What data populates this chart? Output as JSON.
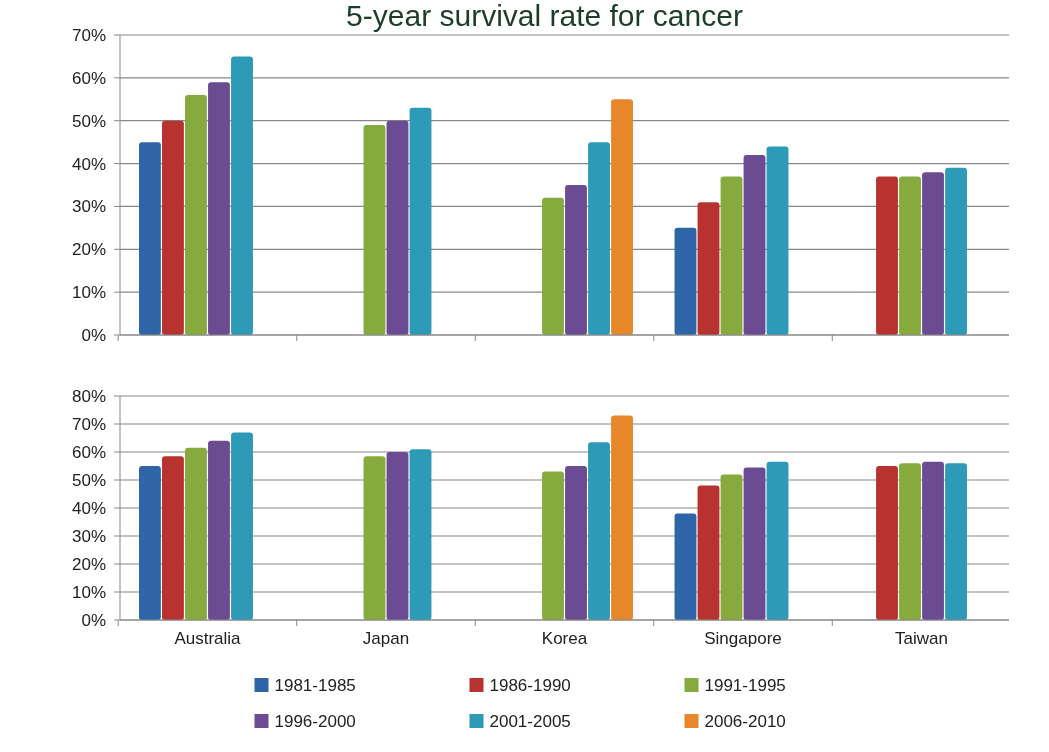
{
  "chart_data": [
    {
      "type": "bar",
      "title": "5-year survival  rate for cancer",
      "categories": [
        null,
        null,
        null,
        null,
        null
      ],
      "tick_labels": "y",
      "grid": "y",
      "legend": false,
      "ylim": [
        0,
        70
      ],
      "yticks": [
        {
          "value": 0,
          "label": "0%"
        },
        {
          "value": 10,
          "label": "10%"
        },
        {
          "value": 20,
          "label": "20%"
        },
        {
          "value": 30,
          "label": "30%"
        },
        {
          "value": 40,
          "label": "40%"
        },
        {
          "value": 50,
          "label": "50%"
        },
        {
          "value": 60,
          "label": "60%"
        },
        {
          "value": 70,
          "label": "70%"
        }
      ],
      "series": [
        {
          "color": "#2e64a8",
          "values": [
            45,
            null,
            null,
            25,
            null
          ]
        },
        {
          "color": "#b8332f",
          "values": [
            50,
            null,
            null,
            31,
            37
          ]
        },
        {
          "color": "#86aa3e",
          "values": [
            56,
            49,
            32,
            37,
            37
          ]
        },
        {
          "color": "#6b4c92",
          "values": [
            59,
            50,
            35,
            42,
            38
          ]
        },
        {
          "color": "#2d9ab8",
          "values": [
            65,
            53,
            45,
            44,
            39
          ]
        },
        {
          "color": "#e8872a",
          "values": [
            null,
            null,
            55,
            null,
            null
          ]
        }
      ]
    },
    {
      "type": "bar",
      "categories": [
        "Australia",
        "Japan",
        "Korea",
        "Singapore",
        "Taiwan"
      ],
      "grid": "y",
      "legend": "bottom",
      "ylim": [
        0,
        80
      ],
      "yticks": [
        {
          "value": 0,
          "label": "0%"
        },
        {
          "value": 10,
          "label": "10%"
        },
        {
          "value": 20,
          "label": "20%"
        },
        {
          "value": 30,
          "label": "30%"
        },
        {
          "value": 40,
          "label": "40%"
        },
        {
          "value": 50,
          "label": "50%"
        },
        {
          "value": 60,
          "label": "60%"
        },
        {
          "value": 70,
          "label": "70%"
        },
        {
          "value": 80,
          "label": "80%"
        }
      ],
      "series": [
        {
          "name": "1981-1985",
          "color": "#2e64a8",
          "values": [
            55,
            null,
            null,
            38,
            null
          ]
        },
        {
          "name": "1986-1990",
          "color": "#b8332f",
          "values": [
            58.5,
            null,
            null,
            48,
            55
          ]
        },
        {
          "name": "1991-1995",
          "color": "#86aa3e",
          "values": [
            61.5,
            58.5,
            53,
            52,
            56
          ]
        },
        {
          "name": "1996-2000",
          "color": "#6b4c92",
          "values": [
            64,
            60,
            55,
            54.5,
            56.5
          ]
        },
        {
          "name": "2001-2005",
          "color": "#2d9ab8",
          "values": [
            67,
            61,
            63.5,
            56.5,
            56
          ]
        },
        {
          "name": "2006-2010",
          "color": "#e8872a",
          "values": [
            null,
            null,
            73,
            null,
            null
          ]
        }
      ]
    }
  ]
}
